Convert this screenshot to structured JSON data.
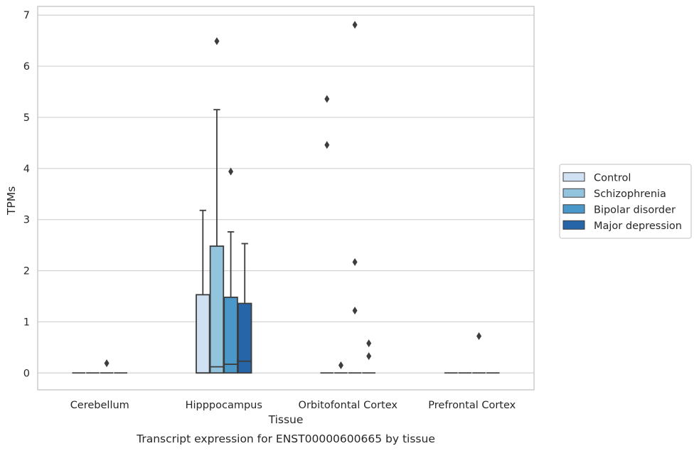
{
  "chart_data": {
    "type": "box",
    "title": "Transcript expression for ENST00000600665 by tissue",
    "xlabel": "Tissue",
    "ylabel": "TPMs",
    "ylim": [
      -0.33,
      7.17
    ],
    "yticks": [
      0,
      1,
      2,
      3,
      4,
      5,
      6,
      7
    ],
    "categories": [
      "Cerebellum",
      "Hipppocampus",
      "Orbitofontal Cortex",
      "Prefrontal Cortex"
    ],
    "grid": "horizontal",
    "legend_position": "right",
    "series": [
      {
        "name": "Control",
        "color": "#cfe1f2",
        "boxes": [
          {
            "q1": 0,
            "median": 0,
            "q3": 0,
            "whisker_low": 0,
            "whisker_high": 0,
            "outliers": []
          },
          {
            "q1": 0,
            "median": 0,
            "q3": 1.53,
            "whisker_low": 0,
            "whisker_high": 3.18,
            "outliers": []
          },
          {
            "q1": 0,
            "median": 0,
            "q3": 0,
            "whisker_low": 0,
            "whisker_high": 0,
            "outliers": [
              5.36,
              4.46
            ]
          },
          {
            "q1": 0,
            "median": 0,
            "q3": 0,
            "whisker_low": 0,
            "whisker_high": 0,
            "outliers": []
          }
        ]
      },
      {
        "name": "Schizophrenia",
        "color": "#93c4de",
        "boxes": [
          {
            "q1": 0,
            "median": 0,
            "q3": 0,
            "whisker_low": 0,
            "whisker_high": 0,
            "outliers": []
          },
          {
            "q1": 0,
            "median": 0.12,
            "q3": 2.48,
            "whisker_low": 0,
            "whisker_high": 5.15,
            "outliers": [
              6.49
            ]
          },
          {
            "q1": 0,
            "median": 0,
            "q3": 0,
            "whisker_low": 0,
            "whisker_high": 0,
            "outliers": [
              0.15
            ]
          },
          {
            "q1": 0,
            "median": 0,
            "q3": 0,
            "whisker_low": 0,
            "whisker_high": 0,
            "outliers": []
          }
        ]
      },
      {
        "name": "Bipolar disorder",
        "color": "#4a98c9",
        "boxes": [
          {
            "q1": 0,
            "median": 0,
            "q3": 0,
            "whisker_low": 0,
            "whisker_high": 0,
            "outliers": [
              0.19
            ]
          },
          {
            "q1": 0,
            "median": 0.17,
            "q3": 1.48,
            "whisker_low": 0,
            "whisker_high": 2.76,
            "outliers": [
              3.94
            ]
          },
          {
            "q1": 0,
            "median": 0,
            "q3": 0,
            "whisker_low": 0,
            "whisker_high": 0,
            "outliers": [
              6.81,
              2.17,
              1.22
            ]
          },
          {
            "q1": 0,
            "median": 0,
            "q3": 0,
            "whisker_low": 0,
            "whisker_high": 0,
            "outliers": [
              0.72
            ]
          }
        ]
      },
      {
        "name": "Major depression",
        "color": "#2565a8",
        "boxes": [
          {
            "q1": 0,
            "median": 0,
            "q3": 0,
            "whisker_low": 0,
            "whisker_high": 0,
            "outliers": []
          },
          {
            "q1": 0,
            "median": 0.23,
            "q3": 1.36,
            "whisker_low": 0,
            "whisker_high": 2.53,
            "outliers": []
          },
          {
            "q1": 0,
            "median": 0,
            "q3": 0,
            "whisker_low": 0,
            "whisker_high": 0,
            "outliers": [
              0.58,
              0.33
            ]
          },
          {
            "q1": 0,
            "median": 0,
            "q3": 0,
            "whisker_low": 0,
            "whisker_high": 0,
            "outliers": []
          }
        ]
      }
    ]
  }
}
